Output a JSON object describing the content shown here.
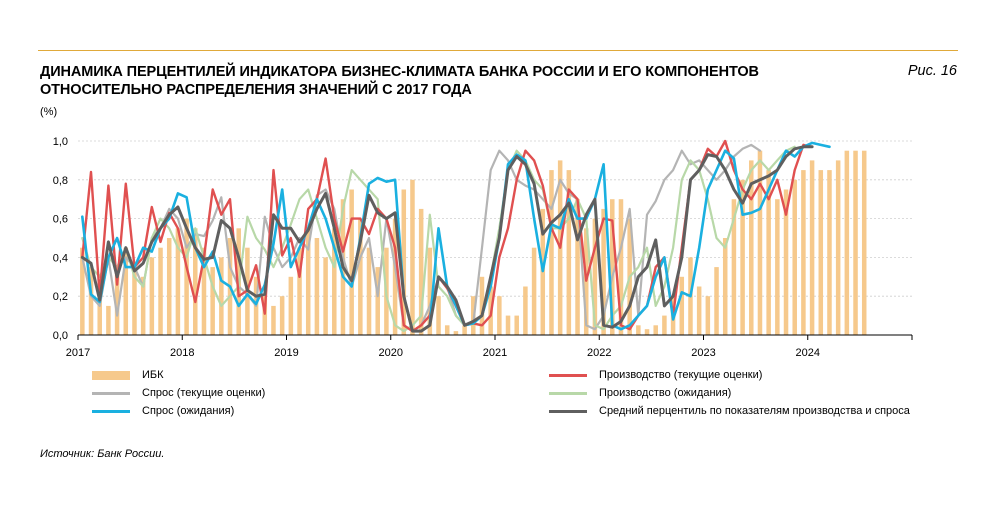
{
  "header": {
    "title_line1": "ДИНАМИКА ПЕРЦЕНТИЛЕЙ ИНДИКАТОРА БИЗНЕС-КЛИМАТА БАНКА РОССИИ И ЕГО КОМПОНЕНТОВ",
    "title_line2": "ОТНОСИТЕЛЬНО РАСПРЕДЕЛЕНИЯ ЗНАЧЕНИЙ С 2017 ГОДА",
    "figure_label": "Рис. 16",
    "unit": "(%)"
  },
  "source": "Источник: Банк России.",
  "colors": {
    "ibk": "#f6c98c",
    "prod_current": "#e05050",
    "demand_current": "#b4b4b4",
    "prod_expect": "#b8d8a8",
    "demand_expect": "#1ab0e0",
    "average": "#5f5f5f",
    "rule": "#e0a93a"
  },
  "chart_data": {
    "type": "bar+line",
    "title": "ДИНАМИКА ПЕРЦЕНТИЛЕЙ ИНДИКАТОРА БИЗНЕС-КЛИМАТА БАНКА РОССИИ И ЕГО КОМПОНЕНТОВ ОТНОСИТЕЛЬНО РАСПРЕДЕЛЕНИЯ ЗНАЧЕНИЙ С 2017 ГОДА",
    "ylabel": "(%)",
    "ylim": [
      0,
      1
    ],
    "yticks": [
      "0,0",
      "0,2",
      "0,4",
      "0,6",
      "0,8",
      "1,0"
    ],
    "xlim": [
      2017,
      2025
    ],
    "xticks": [
      "2017",
      "2018",
      "2019",
      "2020",
      "2021",
      "2022",
      "2023",
      "2024"
    ],
    "start": "2017-01",
    "frequency": "monthly",
    "series": [
      {
        "key": "ibk",
        "name": "ИБК",
        "kind": "bar",
        "values": [
          0.45,
          0.35,
          0.25,
          0.15,
          0.35,
          0.45,
          0.35,
          0.3,
          0.4,
          0.45,
          0.5,
          0.55,
          0.6,
          0.55,
          0.45,
          0.35,
          0.4,
          0.5,
          0.55,
          0.45,
          0.3,
          0.2,
          0.15,
          0.2,
          0.3,
          0.45,
          0.55,
          0.5,
          0.4,
          0.55,
          0.7,
          0.75,
          0.6,
          0.45,
          0.35,
          0.45,
          0.6,
          0.75,
          0.8,
          0.65,
          0.45,
          0.2,
          0.05,
          0.02,
          0.05,
          0.2,
          0.3,
          0.25,
          0.2,
          0.1,
          0.1,
          0.25,
          0.45,
          0.65,
          0.85,
          0.9,
          0.85,
          0.7,
          0.55,
          0.6,
          0.65,
          0.7,
          0.7,
          0.6,
          0.05,
          0.03,
          0.05,
          0.1,
          0.2,
          0.3,
          0.4,
          0.25,
          0.2,
          0.35,
          0.5,
          0.7,
          0.8,
          0.9,
          0.95,
          0.85,
          0.7,
          0.75,
          0.8,
          0.85,
          0.9,
          0.85,
          0.85,
          0.9,
          0.95,
          0.95,
          0.95
        ]
      },
      {
        "key": "prod_current",
        "name": "Производство (текущие оценки)",
        "kind": "line",
        "values": [
          0.4,
          0.84,
          0.2,
          0.77,
          0.26,
          0.78,
          0.35,
          0.4,
          0.66,
          0.48,
          0.63,
          0.55,
          0.35,
          0.17,
          0.4,
          0.75,
          0.62,
          0.7,
          0.2,
          0.23,
          0.36,
          0.11,
          0.85,
          0.41,
          0.5,
          0.3,
          0.65,
          0.7,
          0.91,
          0.6,
          0.43,
          0.6,
          0.6,
          0.52,
          0.65,
          0.6,
          0.45,
          0.05,
          0.02,
          0.05,
          0.1,
          0.3,
          0.24,
          0.15,
          0.05,
          0.06,
          0.05,
          0.1,
          0.4,
          0.55,
          0.8,
          0.95,
          0.9,
          0.77,
          0.55,
          0.45,
          0.75,
          0.7,
          0.28,
          0.45,
          0.6,
          0.59,
          0.05,
          0.03,
          0.1,
          0.15,
          0.35,
          0.4,
          0.1,
          0.45,
          0.8,
          0.85,
          0.96,
          0.92,
          1.0,
          0.85,
          0.75,
          0.7,
          0.78,
          0.7,
          0.8,
          0.62,
          0.85,
          0.98,
          0.97
        ]
      },
      {
        "key": "demand_current",
        "name": "Спрос (текущие оценки)",
        "kind": "line",
        "values": [
          0.4,
          0.2,
          0.15,
          0.4,
          0.1,
          0.4,
          0.35,
          0.25,
          0.5,
          0.55,
          0.65,
          0.6,
          0.45,
          0.52,
          0.51,
          0.59,
          0.71,
          0.35,
          0.25,
          0.21,
          0.15,
          0.61,
          0.45,
          0.35,
          0.4,
          0.5,
          0.44,
          0.72,
          0.75,
          0.65,
          0.4,
          0.25,
          0.4,
          0.5,
          0.2,
          0.6,
          0.35,
          0.05,
          0.02,
          0.05,
          0.15,
          0.3,
          0.25,
          0.1,
          0.05,
          0.06,
          0.45,
          0.85,
          0.95,
          0.9,
          0.8,
          0.77,
          0.75,
          0.7,
          0.65,
          0.8,
          0.73,
          0.7,
          0.05,
          0.03,
          0.1,
          0.3,
          0.45,
          0.65,
          0.1,
          0.62,
          0.69,
          0.8,
          0.85,
          0.95,
          0.88,
          0.9,
          0.85,
          0.8,
          0.85,
          0.92,
          0.96,
          0.98,
          0.95
        ]
      },
      {
        "key": "prod_expect",
        "name": "Производство (ожидания)",
        "kind": "line",
        "values": [
          0.5,
          0.35,
          0.3,
          0.4,
          0.35,
          0.45,
          0.3,
          0.25,
          0.5,
          0.6,
          0.55,
          0.45,
          0.4,
          0.55,
          0.4,
          0.25,
          0.15,
          0.2,
          0.25,
          0.61,
          0.5,
          0.44,
          0.35,
          0.45,
          0.57,
          0.7,
          0.75,
          0.6,
          0.45,
          0.35,
          0.65,
          0.85,
          0.8,
          0.75,
          0.7,
          0.2,
          0.05,
          0.02,
          0.05,
          0.1,
          0.62,
          0.25,
          0.2,
          0.1,
          0.05,
          0.06,
          0.1,
          0.3,
          0.55,
          0.85,
          0.95,
          0.9,
          0.8,
          0.75,
          0.55,
          0.55,
          0.6,
          0.7,
          0.6,
          0.05,
          0.03,
          0.1,
          0.15,
          0.3,
          0.35,
          0.45,
          0.15,
          0.25,
          0.45,
          0.8,
          0.9,
          0.85,
          0.7,
          0.5,
          0.45,
          0.6,
          0.75,
          0.85,
          0.9,
          0.85,
          0.9,
          0.95,
          0.97
        ]
      },
      {
        "key": "demand_expect",
        "name": "Спрос (ожидания)",
        "kind": "line",
        "values": [
          0.61,
          0.21,
          0.17,
          0.4,
          0.5,
          0.35,
          0.35,
          0.45,
          0.43,
          0.55,
          0.6,
          0.73,
          0.71,
          0.45,
          0.35,
          0.43,
          0.28,
          0.25,
          0.15,
          0.21,
          0.16,
          0.26,
          0.47,
          0.75,
          0.35,
          0.45,
          0.55,
          0.7,
          0.6,
          0.45,
          0.3,
          0.25,
          0.5,
          0.78,
          0.81,
          0.79,
          0.8,
          0.2,
          0.02,
          0.02,
          0.05,
          0.55,
          0.25,
          0.15,
          0.05,
          0.06,
          0.1,
          0.25,
          0.5,
          0.88,
          0.93,
          0.9,
          0.6,
          0.33,
          0.57,
          0.55,
          0.7,
          0.6,
          0.6,
          0.7,
          0.88,
          0.05,
          0.03,
          0.05,
          0.1,
          0.15,
          0.3,
          0.4,
          0.08,
          0.22,
          0.2,
          0.45,
          0.75,
          0.85,
          0.95,
          0.91,
          0.62,
          0.63,
          0.65,
          0.75,
          0.85,
          0.95,
          0.92,
          0.97,
          0.99,
          0.98,
          0.97
        ]
      },
      {
        "key": "average",
        "name": "Средний перцентиль по показателям производства и спроса",
        "kind": "line",
        "values": [
          0.4,
          0.37,
          0.18,
          0.48,
          0.3,
          0.45,
          0.33,
          0.37,
          0.48,
          0.55,
          0.62,
          0.66,
          0.55,
          0.45,
          0.39,
          0.4,
          0.59,
          0.55,
          0.4,
          0.23,
          0.2,
          0.21,
          0.62,
          0.55,
          0.55,
          0.48,
          0.54,
          0.65,
          0.73,
          0.55,
          0.35,
          0.28,
          0.48,
          0.72,
          0.63,
          0.6,
          0.63,
          0.2,
          0.02,
          0.02,
          0.05,
          0.3,
          0.25,
          0.18,
          0.05,
          0.07,
          0.1,
          0.3,
          0.5,
          0.85,
          0.92,
          0.88,
          0.78,
          0.52,
          0.58,
          0.62,
          0.68,
          0.49,
          0.62,
          0.7,
          0.05,
          0.04,
          0.07,
          0.15,
          0.3,
          0.35,
          0.49,
          0.15,
          0.2,
          0.4,
          0.8,
          0.85,
          0.93,
          0.92,
          0.85,
          0.75,
          0.68,
          0.78,
          0.8,
          0.82,
          0.85,
          0.92,
          0.96,
          0.97,
          0.97
        ]
      }
    ]
  }
}
